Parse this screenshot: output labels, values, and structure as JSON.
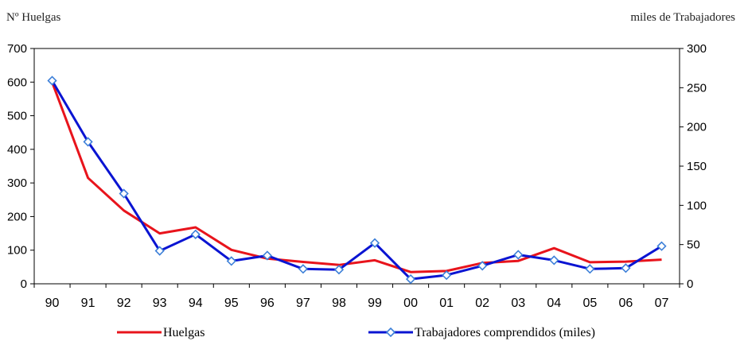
{
  "chart_data": {
    "type": "line",
    "title": "",
    "xlabel": "",
    "ylabel_left": "Nº Huelgas",
    "ylabel_right": "miles de Trabajadores",
    "categories": [
      "90",
      "91",
      "92",
      "93",
      "94",
      "95",
      "96",
      "97",
      "98",
      "99",
      "00",
      "01",
      "02",
      "03",
      "04",
      "05",
      "06",
      "07"
    ],
    "y_left_ticks": [
      "0",
      "100",
      "200",
      "300",
      "400",
      "500",
      "600",
      "700"
    ],
    "y_right_ticks": [
      "0",
      "50",
      "100",
      "150",
      "200",
      "250",
      "300"
    ],
    "ylim_left": [
      0,
      700
    ],
    "ylim_right": [
      0,
      300
    ],
    "grid": false,
    "legend_position": "bottom",
    "series": [
      {
        "name": "Huelgas",
        "axis": "left",
        "color": "#e8141c",
        "marker": "none",
        "values": [
          600,
          315,
          218,
          150,
          168,
          101,
          75,
          65,
          56,
          70,
          35,
          38,
          62,
          68,
          106,
          64,
          66,
          72
        ]
      },
      {
        "name": "Trabajadores comprendidos (miles)",
        "axis": "right",
        "color": "#0a14d2",
        "marker": "diamond",
        "values": [
          259,
          181,
          115,
          42,
          63,
          29,
          36,
          19,
          18,
          52,
          6,
          11,
          23,
          37,
          30,
          19,
          20,
          48
        ]
      }
    ]
  }
}
